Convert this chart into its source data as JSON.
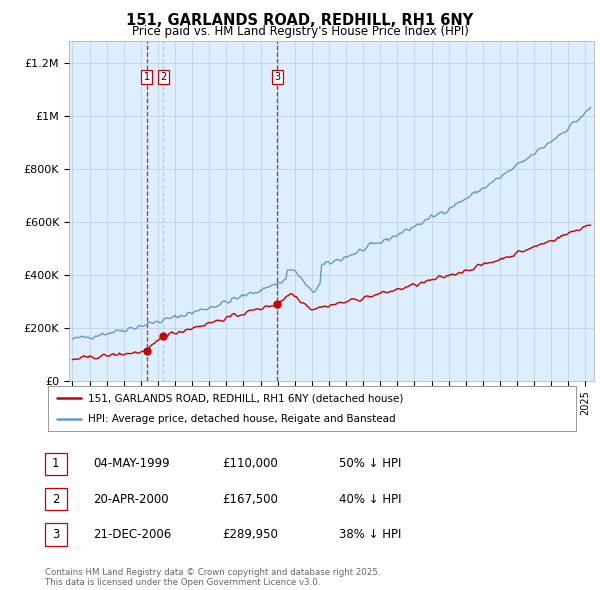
{
  "title": "151, GARLANDS ROAD, REDHILL, RH1 6NY",
  "subtitle": "Price paid vs. HM Land Registry's House Price Index (HPI)",
  "ylabel_ticks": [
    "£0",
    "£200K",
    "£400K",
    "£600K",
    "£800K",
    "£1M",
    "£1.2M"
  ],
  "ytick_vals": [
    0,
    200000,
    400000,
    600000,
    800000,
    1000000,
    1200000
  ],
  "ylim": [
    0,
    1280000
  ],
  "xlim_start": 1994.8,
  "xlim_end": 2025.5,
  "sale_dates": [
    1999.35,
    2000.31,
    2006.97
  ],
  "sale_prices": [
    110000,
    167500,
    289950
  ],
  "sale_labels": [
    "1",
    "2",
    "3"
  ],
  "sale_vline_colors": [
    "#cc0000",
    "#aaccee",
    "#cc0000"
  ],
  "red_line_color": "#cc0000",
  "blue_line_color": "#6699cc",
  "plot_bg_color": "#ddeeff",
  "vline_color_red": "#cc0000",
  "vline_color_blue": "#aaccee",
  "legend_label_red": "151, GARLANDS ROAD, REDHILL, RH1 6NY (detached house)",
  "legend_label_blue": "HPI: Average price, detached house, Reigate and Banstead",
  "table_rows": [
    {
      "num": "1",
      "date": "04-MAY-1999",
      "price": "£110,000",
      "note": "50% ↓ HPI"
    },
    {
      "num": "2",
      "date": "20-APR-2000",
      "price": "£167,500",
      "note": "40% ↓ HPI"
    },
    {
      "num": "3",
      "date": "21-DEC-2006",
      "price": "£289,950",
      "note": "38% ↓ HPI"
    }
  ],
  "footer": "Contains HM Land Registry data © Crown copyright and database right 2025.\nThis data is licensed under the Open Government Licence v3.0.",
  "background_color": "#ffffff",
  "grid_color": "#bbccdd"
}
